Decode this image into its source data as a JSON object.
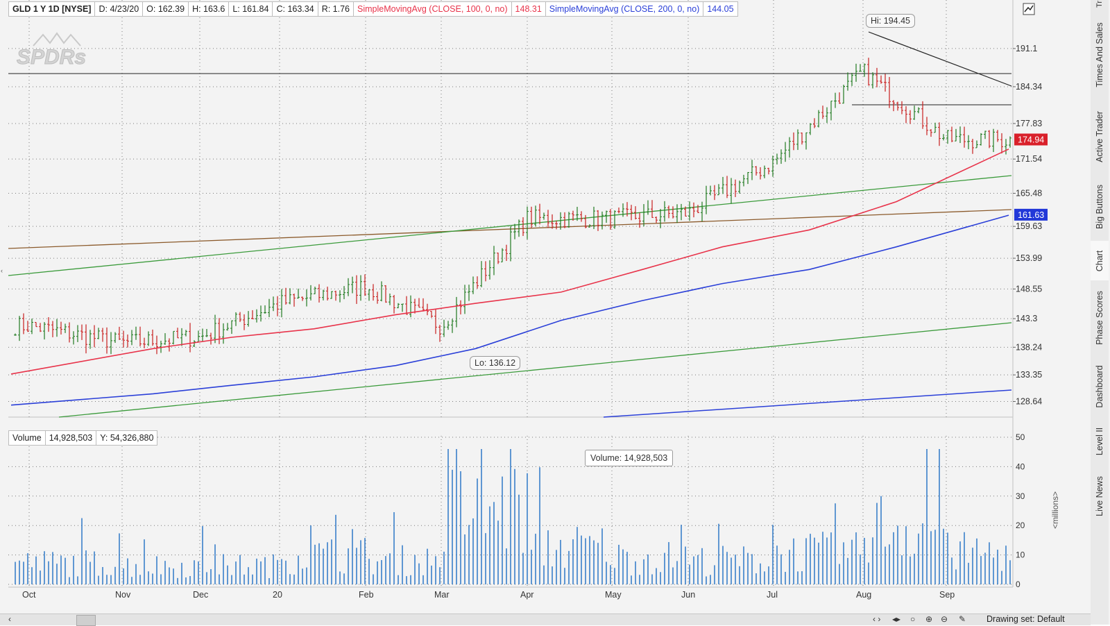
{
  "legend": {
    "symbol": "GLD 1 Y 1D [NYSE]",
    "date": "D: 4/23/20",
    "open": "O: 162.39",
    "high": "H: 163.6",
    "low": "L: 161.84",
    "close": "C: 163.34",
    "range": "R: 1.76",
    "sma100_label": "SimpleMovingAvg (CLOSE, 100, 0, no)",
    "sma100_value": "148.31",
    "sma200_label": "SimpleMovingAvg (CLOSE, 200, 0, no)",
    "sma200_value": "144.05"
  },
  "watermark": "SPDRs",
  "price_axis": {
    "ticks": [
      "191.1",
      "184.34",
      "177.83",
      "171.54",
      "165.48",
      "159.63",
      "153.99",
      "148.55",
      "143.3",
      "138.24",
      "133.35",
      "128.64"
    ],
    "last_price": "174.94",
    "sma_tag": "161.63"
  },
  "annotations": {
    "high": "Hi: 194.45",
    "low": "Lo: 136.12"
  },
  "volume": {
    "title": "Volume",
    "value": "14,928,503",
    "y_readout": "Y: 54,326,880",
    "tooltip": "Volume: 14,928,503",
    "unit_label": "<millions>",
    "ticks": [
      "50",
      "40",
      "30",
      "20",
      "10",
      "0"
    ]
  },
  "time_axis": [
    "Oct",
    "Nov",
    "Dec",
    "20",
    "Feb",
    "Mar",
    "Apr",
    "May",
    "Jun",
    "Jul",
    "Aug",
    "Sep"
  ],
  "right_tabs": [
    "Times And Sales",
    "Active Trader",
    "Big Buttons",
    "Chart",
    "Phase Scores",
    "Dashboard",
    "Level II",
    "Live News",
    "Tr"
  ],
  "bottom": {
    "drawing_set": "Drawing set: Default"
  },
  "colors": {
    "up": "#1f7a1f",
    "down": "#c81e1e",
    "sma100": "#e8334a",
    "sma200": "#2a3fd8",
    "trend_green": "#3a9a3a",
    "trend_brown": "#8b5a2b",
    "volume": "#1f6fc4",
    "price_tag": "#d9202a",
    "sma_tag_bg": "#2238d8"
  },
  "chart_data": {
    "type": "line",
    "title": "GLD 1 Y 1D [NYSE]",
    "price_ylim": [
      126,
      196
    ],
    "volume_ylim": [
      0,
      50
    ],
    "months": [
      {
        "label": "Oct",
        "close": 142,
        "volume": 8
      },
      {
        "label": "Nov",
        "close": 139,
        "volume": 7
      },
      {
        "label": "Dec",
        "close": 140,
        "volume": 7
      },
      {
        "label": "20",
        "close": 146,
        "volume": 11
      },
      {
        "label": "Feb",
        "close": 149,
        "volume": 9
      },
      {
        "label": "Mar",
        "close": 142,
        "volume": 28
      },
      {
        "label": "Apr",
        "close": 161,
        "volume": 14
      },
      {
        "label": "May",
        "close": 161,
        "volume": 10
      },
      {
        "label": "Jun",
        "close": 162,
        "volume": 9
      },
      {
        "label": "Jul",
        "close": 171,
        "volume": 12
      },
      {
        "label": "Aug",
        "close": 187,
        "volume": 22
      },
      {
        "label": "Sep",
        "close": 175,
        "volume": 12
      }
    ],
    "series": [
      {
        "name": "SimpleMovingAvg (CLOSE, 100, 0, no)",
        "values": [
          133.5,
          138,
          140,
          141.5,
          144,
          146,
          148,
          152,
          156,
          159,
          164,
          173.3
        ]
      },
      {
        "name": "SimpleMovingAvg (CLOSE, 200, 0, no)",
        "values": [
          128,
          130,
          131.5,
          133,
          135,
          138,
          143,
          146.5,
          149.5,
          152,
          156,
          161.6
        ]
      }
    ],
    "high": 194.45,
    "low": 136.12,
    "last": 174.94
  }
}
